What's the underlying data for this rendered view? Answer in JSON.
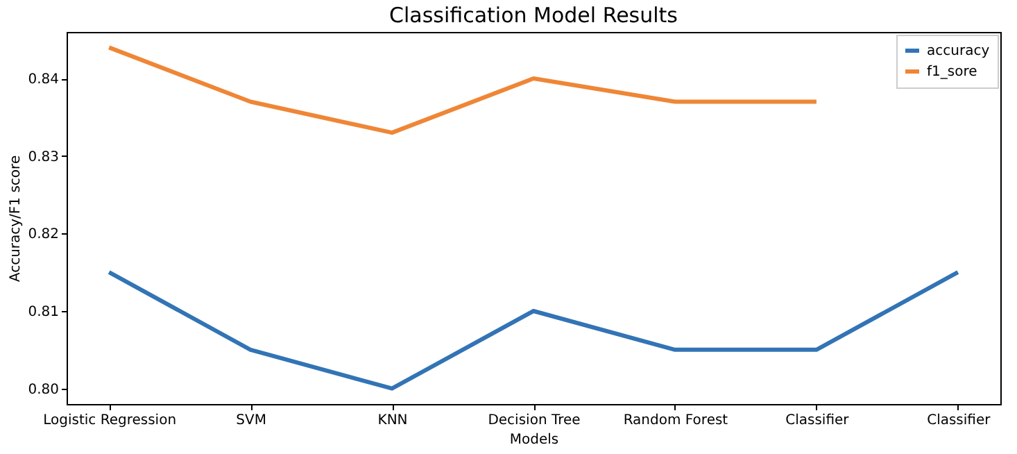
{
  "chart_data": {
    "type": "line",
    "title": "Classification Model Results",
    "xlabel": "Models",
    "ylabel": "Accuracy/F1 score",
    "categories": [
      "Logistic Regression",
      "SVM",
      "KNN",
      "Decision Tree",
      "Random Forest",
      "Classifier",
      "Classifier"
    ],
    "series": [
      {
        "name": "accuracy",
        "color": "#3274b5",
        "values": [
          0.815,
          0.805,
          0.8,
          0.81,
          0.805,
          0.805,
          0.815
        ]
      },
      {
        "name": "f1_sore",
        "color": "#ef8636",
        "values": [
          0.844,
          0.837,
          0.833,
          0.84,
          0.837,
          0.837,
          null
        ]
      }
    ],
    "ylim": [
      0.798,
      0.846
    ],
    "yticks": [
      {
        "value": 0.8,
        "label": "0.80"
      },
      {
        "value": 0.81,
        "label": "0.81"
      },
      {
        "value": 0.82,
        "label": "0.82"
      },
      {
        "value": 0.83,
        "label": "0.83"
      },
      {
        "value": 0.84,
        "label": "0.84"
      }
    ],
    "grid": false,
    "legend": "top right",
    "marker": "none",
    "line_style": "solid"
  }
}
